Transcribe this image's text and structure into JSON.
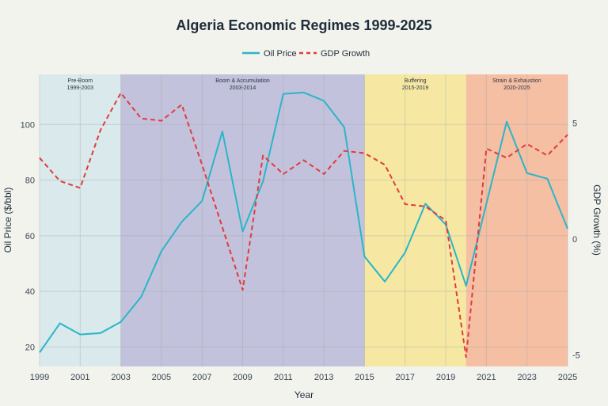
{
  "chart_data": {
    "type": "line",
    "title": "Algeria Economic Regimes 1999-2025",
    "xlabel": "Year",
    "ylabel_left": "Oil Price ($/bbl)",
    "ylabel_right": "GDP Growth (%)",
    "xlim": [
      1999,
      2025
    ],
    "ylim_left": [
      13,
      118
    ],
    "ylim_right": [
      -5.5,
      7.1
    ],
    "x_ticks": [
      1999,
      2001,
      2003,
      2005,
      2007,
      2009,
      2011,
      2013,
      2015,
      2017,
      2019,
      2021,
      2023,
      2025
    ],
    "y_ticks_left": [
      20,
      40,
      60,
      80,
      100
    ],
    "y_ticks_right": [
      -5,
      0,
      5
    ],
    "grid": true,
    "legend_position": "top-center",
    "x": [
      1999,
      2000,
      2001,
      2002,
      2003,
      2004,
      2005,
      2006,
      2007,
      2008,
      2009,
      2010,
      2011,
      2012,
      2013,
      2014,
      2015,
      2016,
      2017,
      2018,
      2019,
      2020,
      2021,
      2022,
      2023,
      2024,
      2025
    ],
    "series": [
      {
        "name": "Oil Price",
        "axis": "left",
        "style": "solid",
        "color": "#2bb5c8",
        "values": [
          18,
          28.5,
          24.5,
          25,
          29,
          38,
          54.5,
          65,
          72.5,
          97.5,
          61.5,
          79.5,
          111,
          111.5,
          108.5,
          99,
          52.5,
          43.5,
          54,
          71.5,
          64,
          42,
          71.5,
          101,
          82.5,
          80.5,
          62.5
        ]
      },
      {
        "name": "GDP Growth",
        "axis": "right",
        "style": "dashed",
        "color": "#e23b3b",
        "values": [
          3.5,
          2.5,
          2.2,
          4.7,
          6.3,
          5.2,
          5.1,
          5.8,
          3.2,
          0.5,
          -2.2,
          3.6,
          2.8,
          3.4,
          2.8,
          3.8,
          3.7,
          3.2,
          1.5,
          1.4,
          0.8,
          -5.1,
          3.9,
          3.5,
          4.1,
          3.6,
          4.5
        ]
      }
    ],
    "regions": [
      {
        "label": "Pre-Boom",
        "range_label": "1999-2003",
        "start": 1999,
        "end": 2003,
        "color": "#d9e9ec"
      },
      {
        "label": "Boom & Accumulation",
        "range_label": "2003-2014",
        "start": 2003,
        "end": 2015,
        "color": "#c3c2dc"
      },
      {
        "label": "Buffering",
        "range_label": "2015-2019",
        "start": 2015,
        "end": 2020,
        "color": "#f6e8a3"
      },
      {
        "label": "Strain & Exhaustion",
        "range_label": "2020-2025",
        "start": 2020,
        "end": 2025,
        "color": "#f5bfa4"
      }
    ]
  }
}
